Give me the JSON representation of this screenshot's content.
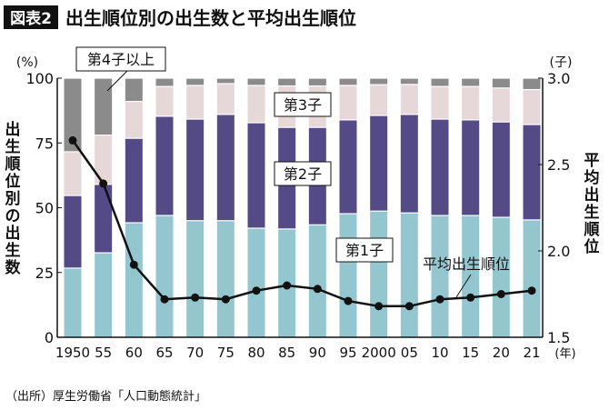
{
  "header": {
    "badge": "図表2",
    "title": "出生順位別の出生数と平均出生順位"
  },
  "source": "（出所）厚生労働省「人口動態統計」",
  "chart_data": {
    "type": "bar",
    "subtype": "stacked-bar-with-line",
    "categories": [
      "1950",
      "55",
      "60",
      "65",
      "70",
      "75",
      "80",
      "85",
      "90",
      "95",
      "2000",
      "05",
      "10",
      "15",
      "20",
      "21"
    ],
    "x_unit": "(年)",
    "left_axis": {
      "label": "出生順位別の出生数",
      "unit": "(%)",
      "ylim": [
        0,
        100
      ],
      "ticks": [
        0,
        25,
        50,
        75,
        100
      ]
    },
    "right_axis": {
      "label": "平均出生順位",
      "unit": "(子)",
      "ylim": [
        1.5,
        3.0
      ],
      "ticks": [
        "1.5",
        "2.0",
        "2.5",
        "3.0"
      ]
    },
    "series": [
      {
        "name": "第1子",
        "color": "#93c6cf",
        "axis": "left",
        "values": [
          26.7,
          32.6,
          44.2,
          47.0,
          45.0,
          45.0,
          42.1,
          41.8,
          43.4,
          47.7,
          48.7,
          48.0,
          47.0,
          47.0,
          46.3,
          45.3
        ]
      },
      {
        "name": "第2子",
        "color": "#544a86",
        "axis": "left",
        "values": [
          28.0,
          26.4,
          32.6,
          38.3,
          39.2,
          41.0,
          40.7,
          39.2,
          37.6,
          36.2,
          36.9,
          38.0,
          37.2,
          36.9,
          36.8,
          36.8
        ]
      },
      {
        "name": "第3子",
        "color": "#e6d7d8",
        "axis": "left",
        "values": [
          16.9,
          19.0,
          14.2,
          11.5,
          13.0,
          11.9,
          14.4,
          16.0,
          16.0,
          13.3,
          11.9,
          11.6,
          12.6,
          12.9,
          13.1,
          13.5
        ]
      },
      {
        "name": "第4子以上",
        "color": "#8b8b8b",
        "axis": "left",
        "values": [
          28.4,
          22.0,
          9.0,
          3.2,
          2.8,
          2.1,
          2.8,
          3.0,
          3.0,
          2.8,
          2.5,
          2.4,
          3.2,
          3.2,
          3.8,
          4.4
        ]
      },
      {
        "name": "平均出生順位",
        "type": "line",
        "color": "#111111",
        "axis": "right",
        "values": [
          2.64,
          2.39,
          1.92,
          1.72,
          1.73,
          1.72,
          1.77,
          1.8,
          1.78,
          1.71,
          1.68,
          1.68,
          1.72,
          1.73,
          1.75,
          1.77
        ]
      }
    ],
    "grid": false,
    "legend": "inline labels"
  }
}
